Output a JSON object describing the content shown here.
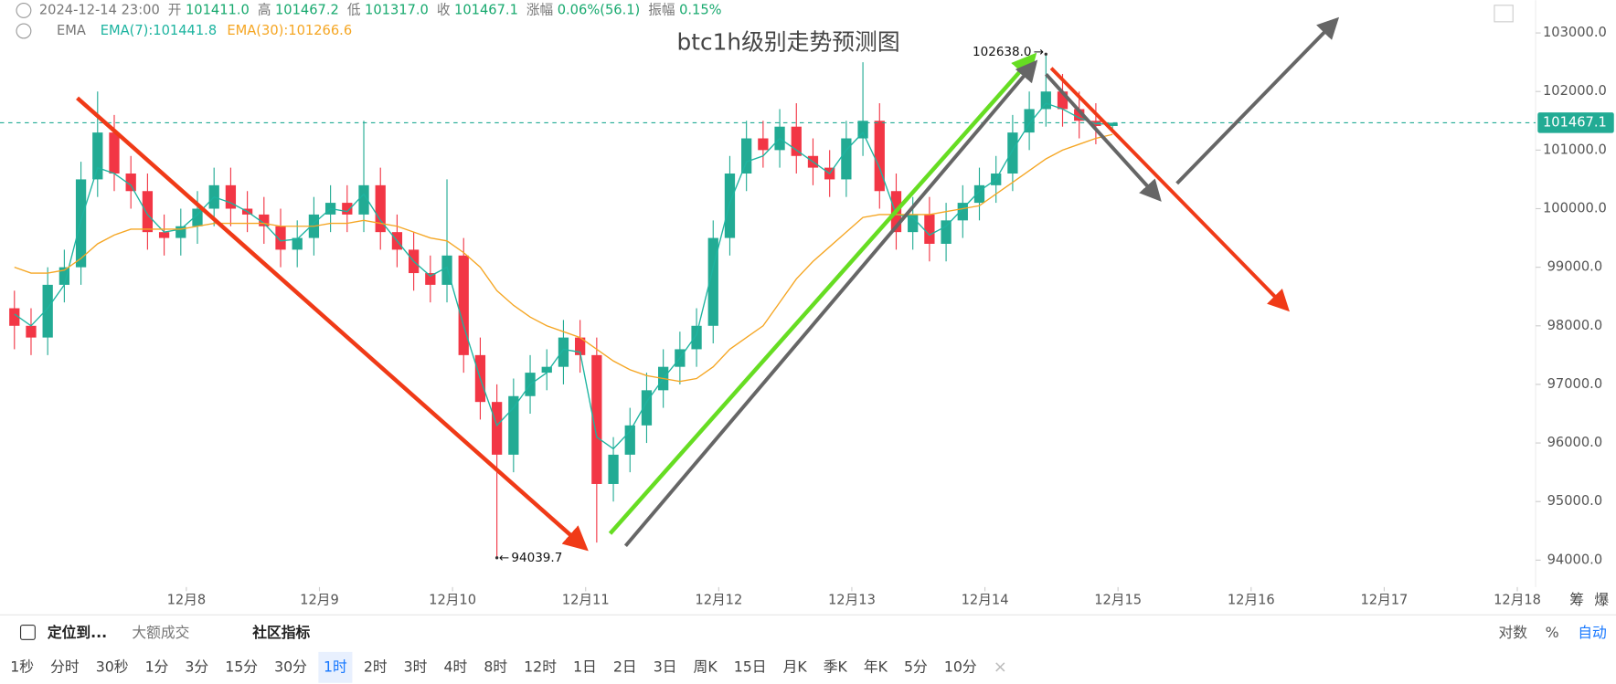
{
  "header": {
    "time": "2024-12-14 23:00",
    "fields": [
      {
        "label": "开",
        "value": "101411.0"
      },
      {
        "label": "高",
        "value": "101467.2"
      },
      {
        "label": "低",
        "value": "101317.0"
      },
      {
        "label": "收",
        "value": "101467.1"
      },
      {
        "label": "涨幅",
        "value": "0.06%(56.1)"
      },
      {
        "label": "振幅",
        "value": "0.15%"
      }
    ],
    "indicator": "EMA"
  },
  "chart_data": {
    "type": "candlestick",
    "title": "btc1h级别走势预测图",
    "x": [
      "2024-12-06 17:00",
      "2024-12-06 20:00",
      "2024-12-06 23:00",
      "2024-12-07 02:00",
      "2024-12-07 05:00",
      "2024-12-07 08:00",
      "2024-12-07 11:00",
      "2024-12-07 14:00",
      "2024-12-07 17:00",
      "2024-12-07 20:00",
      "2024-12-07 23:00",
      "2024-12-08 02:00",
      "2024-12-08 05:00",
      "2024-12-08 08:00",
      "2024-12-08 11:00",
      "2024-12-08 14:00",
      "2024-12-08 17:00",
      "2024-12-08 20:00",
      "2024-12-08 23:00",
      "2024-12-09 02:00",
      "2024-12-09 05:00",
      "2024-12-09 08:00",
      "2024-12-09 11:00",
      "2024-12-09 14:00",
      "2024-12-09 17:00",
      "2024-12-09 20:00",
      "2024-12-09 23:00",
      "2024-12-10 02:00",
      "2024-12-10 05:00",
      "2024-12-10 08:00",
      "2024-12-10 11:00",
      "2024-12-10 14:00",
      "2024-12-10 17:00",
      "2024-12-10 20:00",
      "2024-12-10 23:00",
      "2024-12-11 02:00",
      "2024-12-11 05:00",
      "2024-12-11 08:00",
      "2024-12-11 11:00",
      "2024-12-11 14:00",
      "2024-12-11 17:00",
      "2024-12-11 20:00",
      "2024-12-11 23:00",
      "2024-12-12 02:00",
      "2024-12-12 05:00",
      "2024-12-12 08:00",
      "2024-12-12 11:00",
      "2024-12-12 14:00",
      "2024-12-12 17:00",
      "2024-12-12 20:00",
      "2024-12-12 23:00",
      "2024-12-13 02:00",
      "2024-12-13 05:00",
      "2024-12-13 08:00",
      "2024-12-13 11:00",
      "2024-12-13 14:00",
      "2024-12-13 17:00",
      "2024-12-13 20:00",
      "2024-12-13 23:00",
      "2024-12-14 02:00",
      "2024-12-14 05:00",
      "2024-12-14 08:00",
      "2024-12-14 11:00",
      "2024-12-14 14:00",
      "2024-12-14 17:00",
      "2024-12-14 20:00",
      "2024-12-14 23:00"
    ],
    "open": [
      98300,
      98000,
      97800,
      98700,
      99000,
      100500,
      101300,
      100600,
      100300,
      99600,
      99500,
      99700,
      100000,
      100400,
      100000,
      99900,
      99700,
      99300,
      99500,
      99900,
      100100,
      99900,
      100400,
      99600,
      99300,
      98900,
      98700,
      99200,
      97500,
      96700,
      95800,
      96800,
      97200,
      97300,
      97800,
      97500,
      95300,
      95800,
      96300,
      96900,
      97300,
      97600,
      98000,
      99500,
      100600,
      101200,
      101000,
      101400,
      100900,
      100700,
      100500,
      101200,
      101500,
      100300,
      99600,
      99900,
      99400,
      99800,
      100100,
      100400,
      100600,
      101300,
      101700,
      102000,
      101700,
      101500,
      101411
    ],
    "high": [
      98600,
      98300,
      99000,
      99300,
      100800,
      102000,
      101600,
      100900,
      100600,
      99900,
      100000,
      100300,
      100700,
      100700,
      100300,
      100200,
      100000,
      99800,
      100200,
      100400,
      100400,
      101500,
      100700,
      99900,
      99600,
      99200,
      100500,
      99500,
      97800,
      97000,
      97100,
      97500,
      97600,
      98100,
      98100,
      97800,
      96100,
      96600,
      97200,
      97600,
      97900,
      98300,
      99800,
      100900,
      101500,
      101500,
      101700,
      101800,
      101200,
      101000,
      101500,
      102500,
      101800,
      100600,
      100200,
      100200,
      100100,
      100400,
      100700,
      100900,
      101600,
      102000,
      102638,
      102300,
      102000,
      101800,
      101467.2
    ],
    "low": [
      97600,
      97500,
      97500,
      98400,
      98700,
      100200,
      100300,
      100000,
      99300,
      99200,
      99200,
      99400,
      99700,
      99700,
      99600,
      99400,
      99000,
      99000,
      99200,
      99600,
      99600,
      99600,
      99300,
      99000,
      98600,
      98400,
      98400,
      97200,
      96400,
      94039.7,
      95500,
      96500,
      96900,
      97000,
      97200,
      94300,
      95000,
      95500,
      96000,
      96600,
      97000,
      97300,
      97700,
      99200,
      100300,
      100700,
      100700,
      100600,
      100400,
      100200,
      100200,
      100900,
      100000,
      99300,
      99300,
      99100,
      99100,
      99500,
      99800,
      100100,
      100300,
      101000,
      101400,
      101400,
      101200,
      101100,
      101317
    ],
    "close": [
      98000,
      97800,
      98700,
      99000,
      100500,
      101300,
      100600,
      100300,
      99600,
      99500,
      99700,
      100000,
      100400,
      100000,
      99900,
      99700,
      99300,
      99500,
      99900,
      100100,
      99900,
      100400,
      99600,
      99300,
      98900,
      98700,
      99200,
      97500,
      96700,
      95800,
      96800,
      97200,
      97300,
      97800,
      97500,
      95300,
      95800,
      96300,
      96900,
      97300,
      97600,
      98000,
      99500,
      100600,
      101200,
      101000,
      101400,
      100900,
      100700,
      100500,
      101200,
      101500,
      100300,
      99600,
      99900,
      99400,
      99800,
      100100,
      100400,
      100600,
      101300,
      101700,
      102000,
      101700,
      101500,
      101411,
      101467.1
    ],
    "up_color": "#22ab94",
    "down_color": "#f23645",
    "series": [
      {
        "name": "EMA(7):101441.8",
        "color": "#1db4a0",
        "values": [
          98200,
          98000,
          98300,
          98700,
          99800,
          100700,
          100600,
          100400,
          99900,
          99600,
          99650,
          99900,
          100200,
          100100,
          99950,
          99750,
          99450,
          99480,
          99750,
          100000,
          99950,
          100250,
          99800,
          99450,
          99100,
          98850,
          99000,
          98000,
          97100,
          96300,
          96600,
          97000,
          97200,
          97600,
          97550,
          96100,
          95900,
          96200,
          96700,
          97100,
          97450,
          97850,
          99000,
          100100,
          100800,
          100900,
          101200,
          101000,
          100800,
          100600,
          101000,
          101300,
          100700,
          99900,
          99850,
          99550,
          99700,
          100000,
          100300,
          100500,
          101000,
          101450,
          101800,
          101700,
          101550,
          101450,
          101441.8
        ]
      },
      {
        "name": "EMA(30):101266.6",
        "color": "#f5a623",
        "values": [
          99000,
          98900,
          98900,
          98950,
          99150,
          99400,
          99550,
          99650,
          99650,
          99650,
          99650,
          99700,
          99750,
          99750,
          99750,
          99750,
          99700,
          99700,
          99700,
          99750,
          99750,
          99800,
          99750,
          99700,
          99600,
          99500,
          99450,
          99250,
          99000,
          98600,
          98350,
          98150,
          98000,
          97900,
          97800,
          97600,
          97400,
          97250,
          97150,
          97100,
          97050,
          97100,
          97300,
          97600,
          97800,
          98000,
          98400,
          98800,
          99100,
          99350,
          99600,
          99850,
          99900,
          99900,
          99900,
          99900,
          99950,
          100000,
          100050,
          100250,
          100450,
          100650,
          100850,
          101000,
          101100,
          101200,
          101266.6
        ]
      }
    ],
    "xlim": [
      "2024-12-06 14:24",
      "2024-12-18 03:18"
    ],
    "xticks": [
      {
        "value": "2024-12-08 00:00",
        "label": "12月8"
      },
      {
        "value": "2024-12-09 00:00",
        "label": "12月9"
      },
      {
        "value": "2024-12-10 00:00",
        "label": "12月10"
      },
      {
        "value": "2024-12-11 00:00",
        "label": "12月11"
      },
      {
        "value": "2024-12-12 00:00",
        "label": "12月12"
      },
      {
        "value": "2024-12-13 00:00",
        "label": "12月13"
      },
      {
        "value": "2024-12-14 00:00",
        "label": "12月14"
      },
      {
        "value": "2024-12-15 00:00",
        "label": "12月15"
      },
      {
        "value": "2024-12-16 00:00",
        "label": "12月16"
      },
      {
        "value": "2024-12-17 00:00",
        "label": "12月17"
      },
      {
        "value": "2024-12-18 00:00",
        "label": "12月18"
      }
    ],
    "ylim": [
      93540,
      103560
    ],
    "yticks": [
      {
        "value": 94000,
        "label": "94000.0"
      },
      {
        "value": 95000,
        "label": "95000.0"
      },
      {
        "value": 96000,
        "label": "96000.0"
      },
      {
        "value": 97000,
        "label": "97000.0"
      },
      {
        "value": 98000,
        "label": "98000.0"
      },
      {
        "value": 99000,
        "label": "99000.0"
      },
      {
        "value": 100000,
        "label": "100000.0"
      },
      {
        "value": 101000,
        "label": "101000.0"
      },
      {
        "value": 102000,
        "label": "102000.0"
      },
      {
        "value": 103000,
        "label": "103000.0"
      }
    ],
    "last_price": 101467.1,
    "annotations": [
      {
        "label": "102638.0",
        "value": 102638,
        "x": "2024-12-14 11:00"
      },
      {
        "label": "94039.7",
        "value": 94039.7,
        "x": "2024-12-10 08:00"
      }
    ]
  },
  "toolbar": {
    "tools": [
      "定位到...",
      "大额成交",
      "社区指标"
    ],
    "scale_modes": [
      "对数",
      "%",
      "自动"
    ],
    "side_buttons": [
      "筹",
      "爆"
    ],
    "intervals": [
      "1秒",
      "分时",
      "30秒",
      "1分",
      "3分",
      "15分",
      "30分",
      "1时",
      "2时",
      "3时",
      "4时",
      "8时",
      "12时",
      "1日",
      "2日",
      "3日",
      "周K",
      "15日",
      "月K",
      "季K",
      "年K",
      "5分",
      "10分"
    ],
    "active_interval_index": 7
  }
}
